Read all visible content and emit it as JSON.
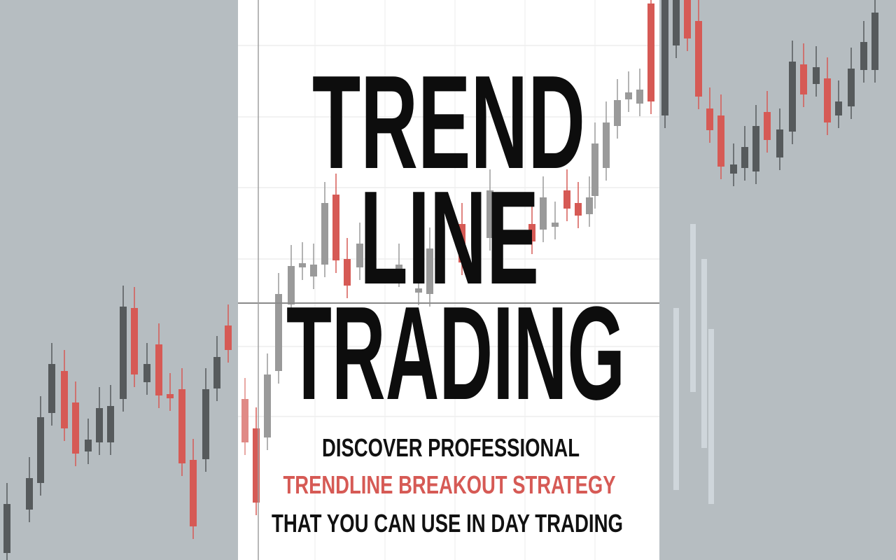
{
  "title": {
    "lines": [
      "TREND",
      "LINE",
      "TRADING"
    ]
  },
  "subtitle": {
    "lines": [
      "DISCOVER PROFESSIONAL",
      "TRENDLINE BREAKOUT STRATEGY",
      "THAT YOU CAN USE IN DAY TRADING"
    ]
  }
}
